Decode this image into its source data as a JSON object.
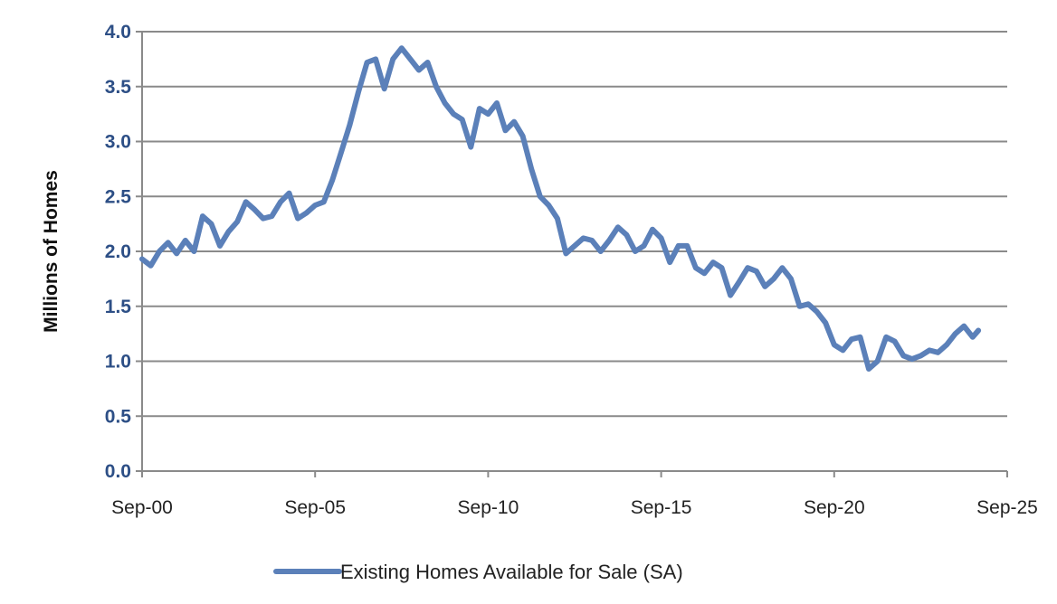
{
  "chart_data": {
    "type": "line",
    "title": "",
    "xlabel": "",
    "ylabel": "Millions of Homes",
    "ylim": [
      0,
      4
    ],
    "yticks": [
      "0.0",
      "0.5",
      "1.0",
      "1.5",
      "2.0",
      "2.5",
      "3.0",
      "3.5",
      "4.0"
    ],
    "xlim": [
      "2000-09",
      "2025-09"
    ],
    "xticks": [
      "Sep-00",
      "Sep-05",
      "Sep-10",
      "Sep-15",
      "Sep-20",
      "Sep-25"
    ],
    "grid": true,
    "legend_position": "bottom-center",
    "series": [
      {
        "name": "Existing Homes Available for Sale (SA)",
        "color": "#5b80b9",
        "points": [
          [
            "2000-09",
            1.93
          ],
          [
            "2000-12",
            1.87
          ],
          [
            "2001-03",
            2.0
          ],
          [
            "2001-06",
            2.08
          ],
          [
            "2001-09",
            1.98
          ],
          [
            "2001-12",
            2.1
          ],
          [
            "2002-03",
            2.0
          ],
          [
            "2002-06",
            2.32
          ],
          [
            "2002-09",
            2.25
          ],
          [
            "2002-12",
            2.05
          ],
          [
            "2003-03",
            2.18
          ],
          [
            "2003-06",
            2.27
          ],
          [
            "2003-09",
            2.45
          ],
          [
            "2003-12",
            2.38
          ],
          [
            "2004-03",
            2.3
          ],
          [
            "2004-06",
            2.32
          ],
          [
            "2004-09",
            2.45
          ],
          [
            "2004-12",
            2.53
          ],
          [
            "2005-03",
            2.3
          ],
          [
            "2005-06",
            2.35
          ],
          [
            "2005-09",
            2.42
          ],
          [
            "2005-12",
            2.45
          ],
          [
            "2006-03",
            2.65
          ],
          [
            "2006-06",
            2.9
          ],
          [
            "2006-09",
            3.15
          ],
          [
            "2006-12",
            3.45
          ],
          [
            "2007-03",
            3.72
          ],
          [
            "2007-06",
            3.75
          ],
          [
            "2007-09",
            3.48
          ],
          [
            "2007-12",
            3.75
          ],
          [
            "2008-03",
            3.85
          ],
          [
            "2008-06",
            3.75
          ],
          [
            "2008-09",
            3.65
          ],
          [
            "2008-12",
            3.72
          ],
          [
            "2009-03",
            3.5
          ],
          [
            "2009-06",
            3.35
          ],
          [
            "2009-09",
            3.25
          ],
          [
            "2009-12",
            3.2
          ],
          [
            "2010-03",
            2.95
          ],
          [
            "2010-06",
            3.3
          ],
          [
            "2010-09",
            3.25
          ],
          [
            "2010-12",
            3.35
          ],
          [
            "2011-03",
            3.1
          ],
          [
            "2011-06",
            3.18
          ],
          [
            "2011-09",
            3.05
          ],
          [
            "2011-12",
            2.75
          ],
          [
            "2012-03",
            2.5
          ],
          [
            "2012-06",
            2.42
          ],
          [
            "2012-09",
            2.3
          ],
          [
            "2012-12",
            1.98
          ],
          [
            "2013-03",
            2.05
          ],
          [
            "2013-06",
            2.12
          ],
          [
            "2013-09",
            2.1
          ],
          [
            "2013-12",
            2.0
          ],
          [
            "2014-03",
            2.1
          ],
          [
            "2014-06",
            2.22
          ],
          [
            "2014-09",
            2.15
          ],
          [
            "2014-12",
            2.0
          ],
          [
            "2015-03",
            2.05
          ],
          [
            "2015-06",
            2.2
          ],
          [
            "2015-09",
            2.12
          ],
          [
            "2015-12",
            1.9
          ],
          [
            "2016-03",
            2.05
          ],
          [
            "2016-06",
            2.05
          ],
          [
            "2016-09",
            1.85
          ],
          [
            "2016-12",
            1.8
          ],
          [
            "2017-03",
            1.9
          ],
          [
            "2017-06",
            1.85
          ],
          [
            "2017-09",
            1.6
          ],
          [
            "2017-12",
            1.72
          ],
          [
            "2018-03",
            1.85
          ],
          [
            "2018-06",
            1.82
          ],
          [
            "2018-09",
            1.68
          ],
          [
            "2018-12",
            1.75
          ],
          [
            "2019-03",
            1.85
          ],
          [
            "2019-06",
            1.75
          ],
          [
            "2019-09",
            1.5
          ],
          [
            "2019-12",
            1.52
          ],
          [
            "2020-03",
            1.45
          ],
          [
            "2020-06",
            1.35
          ],
          [
            "2020-09",
            1.15
          ],
          [
            "2020-12",
            1.1
          ],
          [
            "2021-03",
            1.2
          ],
          [
            "2021-06",
            1.22
          ],
          [
            "2021-09",
            0.93
          ],
          [
            "2021-12",
            1.0
          ],
          [
            "2022-03",
            1.22
          ],
          [
            "2022-06",
            1.18
          ],
          [
            "2022-09",
            1.05
          ],
          [
            "2022-12",
            1.02
          ],
          [
            "2023-03",
            1.05
          ],
          [
            "2023-06",
            1.1
          ],
          [
            "2023-09",
            1.08
          ],
          [
            "2023-12",
            1.15
          ],
          [
            "2024-03",
            1.25
          ],
          [
            "2024-06",
            1.32
          ],
          [
            "2024-09",
            1.22
          ],
          [
            "2024-11",
            1.28
          ]
        ]
      }
    ]
  }
}
